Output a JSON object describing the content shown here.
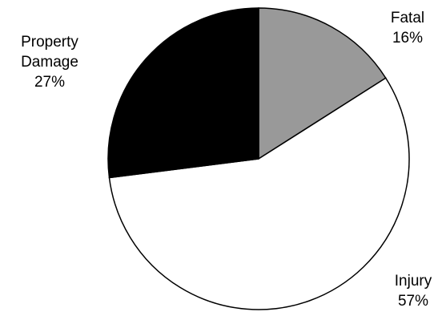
{
  "chart_data": {
    "type": "pie",
    "title": "",
    "start_angle_deg": 0,
    "direction": "clockwise",
    "slices": [
      {
        "label": [
          "Fatal"
        ],
        "value": 16,
        "value_text": "16%",
        "color": "#999999"
      },
      {
        "label": [
          "Injury"
        ],
        "value": 57,
        "value_text": "57%",
        "color": "#ffffff"
      },
      {
        "label": [
          "Property",
          "Damage"
        ],
        "value": 27,
        "value_text": "27%",
        "color": "#000000"
      }
    ],
    "stroke_color": "#000000"
  }
}
